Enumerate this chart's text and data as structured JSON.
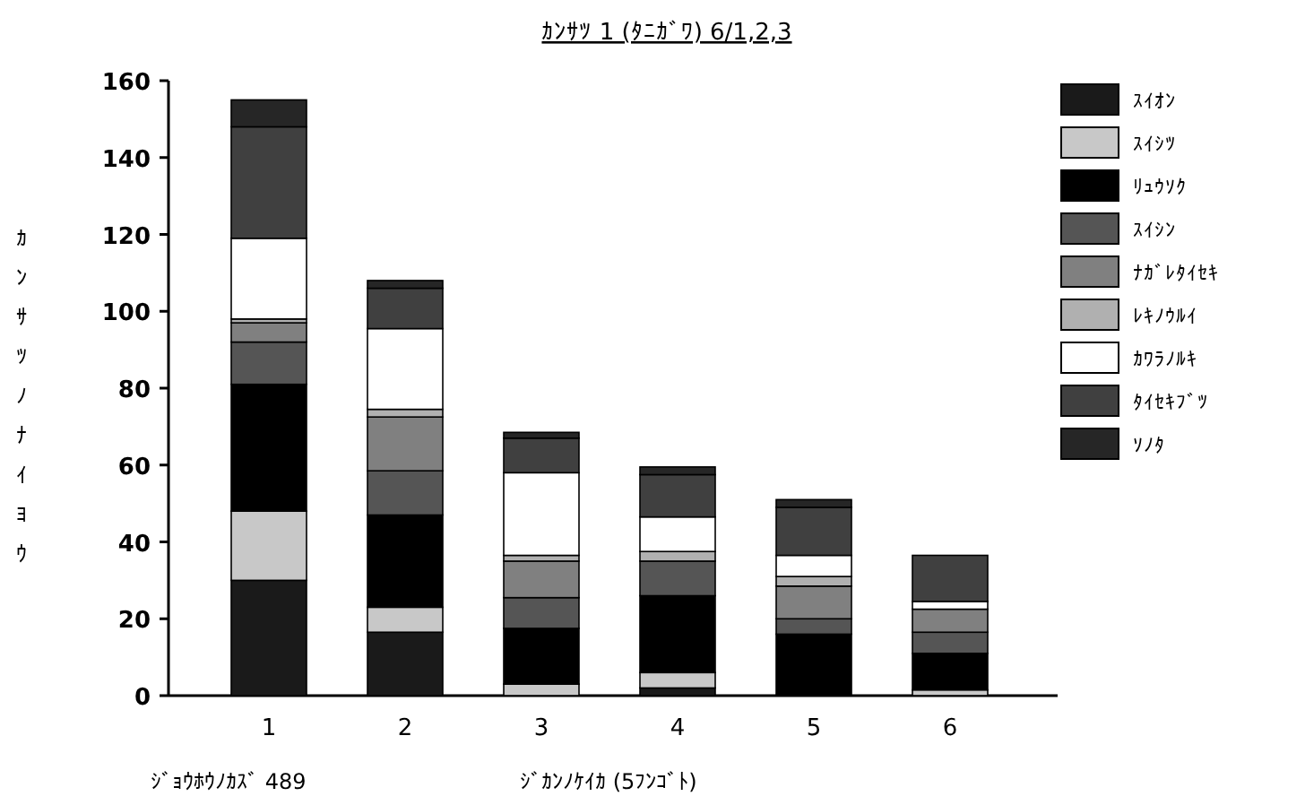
{
  "chart_data": {
    "type": "bar",
    "stacked": true,
    "title": "ｶﾝｻﾂ 1 (ﾀﾆｶﾞﾜ) 6/1,2,3",
    "xlabel": "ｼﾞｶﾝﾉｹｲｶ (5ﾌﾝｺﾞﾄ)",
    "ylabel": "ｶﾝｻﾂﾉﾅｲﾖｳ",
    "annotations": [
      "ｼﾞｮｳﾎｳﾉｶｽﾞ 489"
    ],
    "categories": [
      "1",
      "2",
      "3",
      "4",
      "5",
      "6"
    ],
    "ylim": [
      0,
      160
    ],
    "yticks": [
      0,
      20,
      40,
      60,
      80,
      100,
      120,
      140,
      160
    ],
    "legend": "top right",
    "series": [
      {
        "name": "ｽｲｵﾝ",
        "color": "#1a1a1a",
        "values": [
          30,
          16.5,
          0,
          2,
          0,
          0
        ]
      },
      {
        "name": "ｽｲｼﾂ",
        "color": "#c8c8c8",
        "values": [
          18,
          6.5,
          3,
          4,
          0,
          1.5
        ]
      },
      {
        "name": "ﾘｭｳｿｸ",
        "color": "#000000",
        "values": [
          33,
          24,
          14.5,
          20,
          16,
          9.5
        ]
      },
      {
        "name": "ｽｲｼﾝ",
        "color": "#555555",
        "values": [
          11,
          11.5,
          8,
          9,
          4,
          5.5
        ]
      },
      {
        "name": "ﾅｶﾞﾚﾀｲｾｷ",
        "color": "#808080",
        "values": [
          5,
          14,
          9.5,
          0,
          8.5,
          6
        ]
      },
      {
        "name": "ﾚｷﾉｳﾙｲ",
        "color": "#b0b0b0",
        "values": [
          1,
          2,
          1.5,
          2.5,
          2.5,
          0
        ]
      },
      {
        "name": "ｶﾜﾗﾉﾙｷ",
        "color": "#ffffff",
        "values": [
          21,
          21,
          21.5,
          9,
          5.5,
          2
        ]
      },
      {
        "name": "ﾀｲｾｷﾌﾞﾂ",
        "color": "#404040",
        "values": [
          29,
          10.5,
          9,
          11,
          12.5,
          12
        ]
      },
      {
        "name": "ｿﾉﾀ",
        "color": "#262626",
        "values": [
          7,
          2,
          1.5,
          2,
          2,
          0
        ]
      }
    ]
  }
}
